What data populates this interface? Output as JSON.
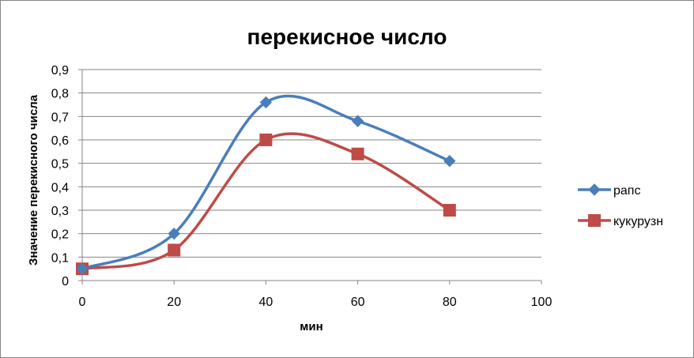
{
  "chart_data": {
    "type": "line",
    "title": "перекисное число",
    "xlabel": "мин",
    "ylabel": "Значение перекисного числа",
    "xlim": [
      0,
      100
    ],
    "ylim": [
      0,
      0.9
    ],
    "x_ticks": [
      0,
      20,
      40,
      60,
      80,
      100
    ],
    "x_tick_labels": [
      "0",
      "20",
      "40",
      "60",
      "80",
      "100"
    ],
    "y_ticks": [
      0,
      0.1,
      0.2,
      0.3,
      0.4,
      0.5,
      0.6,
      0.7,
      0.8,
      0.9
    ],
    "y_tick_labels": [
      "0",
      "0,1",
      "0,2",
      "0,3",
      "0,4",
      "0,5",
      "0,6",
      "0,7",
      "0,8",
      "0,9"
    ],
    "grid": true,
    "smooth": true,
    "legend_position": "right",
    "series": [
      {
        "name": "рапс",
        "x": [
          0,
          20,
          40,
          60,
          80
        ],
        "y": [
          0.05,
          0.2,
          0.76,
          0.68,
          0.51
        ],
        "color": "#4A7EBB",
        "marker": "diamond"
      },
      {
        "name": "кукурузн",
        "x": [
          0,
          20,
          40,
          60,
          80
        ],
        "y": [
          0.05,
          0.13,
          0.6,
          0.54,
          0.3
        ],
        "color": "#BE4B48",
        "marker": "square"
      }
    ]
  }
}
